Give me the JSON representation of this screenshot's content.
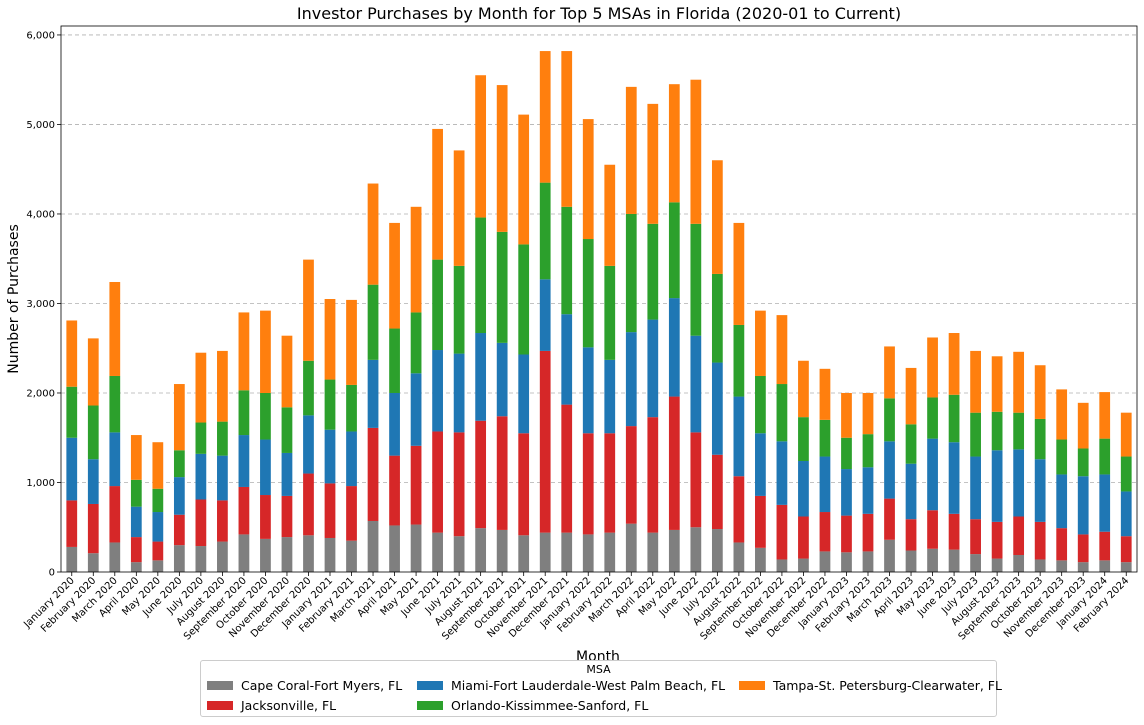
{
  "chart_data": {
    "type": "bar",
    "stacked": true,
    "title": "Investor Purchases by Month for Top 5 MSAs in Florida (2020-01 to Current)",
    "xlabel": "Month",
    "ylabel": "Number of Purchases",
    "ylim": [
      0,
      6100
    ],
    "yticks": [
      0,
      1000,
      2000,
      3000,
      4000,
      5000,
      6000
    ],
    "ytick_labels": [
      "0",
      "1,000",
      "2,000",
      "3,000",
      "4,000",
      "5,000",
      "6,000"
    ],
    "grid": "y",
    "legend": {
      "title": "MSA",
      "placement": "bottom-center"
    },
    "categories": [
      "January 2020",
      "February 2020",
      "March 2020",
      "April 2020",
      "May 2020",
      "June 2020",
      "July 2020",
      "August 2020",
      "September 2020",
      "October 2020",
      "November 2020",
      "December 2020",
      "January 2021",
      "February 2021",
      "March 2021",
      "April 2021",
      "May 2021",
      "June 2021",
      "July 2021",
      "August 2021",
      "September 2021",
      "October 2021",
      "November 2021",
      "December 2021",
      "January 2022",
      "February 2022",
      "March 2022",
      "April 2022",
      "May 2022",
      "June 2022",
      "July 2022",
      "August 2022",
      "September 2022",
      "October 2022",
      "November 2022",
      "December 2022",
      "January 2023",
      "February 2023",
      "March 2023",
      "April 2023",
      "May 2023",
      "June 2023",
      "July 2023",
      "August 2023",
      "September 2023",
      "October 2023",
      "November 2023",
      "December 2023",
      "January 2024",
      "February 2024"
    ],
    "series": [
      {
        "name": "Cape Coral-Fort Myers, FL",
        "color": "#7f7f7f",
        "values": [
          280,
          210,
          330,
          110,
          130,
          300,
          290,
          340,
          420,
          370,
          390,
          410,
          380,
          350,
          570,
          520,
          530,
          440,
          400,
          490,
          470,
          410,
          440,
          440,
          420,
          440,
          540,
          440,
          470,
          500,
          480,
          330,
          270,
          140,
          150,
          230,
          220,
          230,
          360,
          240,
          260,
          250,
          200,
          150,
          190,
          140,
          130,
          110,
          130,
          110
        ]
      },
      {
        "name": "Jacksonville, FL",
        "color": "#d62728",
        "values": [
          520,
          550,
          630,
          280,
          210,
          340,
          520,
          460,
          530,
          490,
          460,
          690,
          610,
          610,
          1040,
          780,
          880,
          1130,
          1160,
          1200,
          1270,
          1140,
          2030,
          1430,
          1130,
          1110,
          1090,
          1290,
          1490,
          1060,
          830,
          740,
          580,
          610,
          470,
          440,
          410,
          420,
          460,
          350,
          430,
          400,
          390,
          410,
          430,
          420,
          360,
          310,
          320,
          290
        ]
      },
      {
        "name": "Miami-Fort Lauderdale-West Palm Beach, FL",
        "color": "#1f77b4",
        "values": [
          700,
          500,
          600,
          340,
          330,
          420,
          510,
          500,
          580,
          620,
          480,
          650,
          600,
          610,
          760,
          700,
          810,
          910,
          880,
          980,
          820,
          880,
          800,
          1010,
          960,
          820,
          1050,
          1090,
          1100,
          1080,
          1030,
          890,
          700,
          710,
          620,
          620,
          520,
          520,
          640,
          620,
          800,
          800,
          700,
          800,
          750,
          700,
          600,
          650,
          640,
          500
        ]
      },
      {
        "name": "Orlando-Kissimmee-Sanford, FL",
        "color": "#2ca02c",
        "values": [
          570,
          600,
          630,
          300,
          260,
          300,
          350,
          380,
          500,
          520,
          510,
          610,
          560,
          520,
          840,
          720,
          680,
          1010,
          980,
          1290,
          1240,
          1230,
          1080,
          1200,
          1210,
          1050,
          1320,
          1070,
          1070,
          1250,
          990,
          800,
          640,
          640,
          490,
          410,
          350,
          370,
          480,
          440,
          460,
          530,
          490,
          430,
          410,
          450,
          390,
          310,
          400,
          390
        ]
      },
      {
        "name": "Tampa-St. Petersburg-Clearwater, FL",
        "color": "#ff7f0e",
        "values": [
          740,
          750,
          1050,
          500,
          520,
          740,
          780,
          790,
          870,
          920,
          800,
          1130,
          900,
          950,
          1130,
          1180,
          1180,
          1460,
          1290,
          1590,
          1640,
          1450,
          1470,
          1740,
          1340,
          1130,
          1420,
          1340,
          1320,
          1610,
          1270,
          1140,
          730,
          770,
          630,
          570,
          500,
          460,
          580,
          630,
          670,
          690,
          690,
          620,
          680,
          600,
          560,
          510,
          520,
          490
        ]
      }
    ]
  }
}
